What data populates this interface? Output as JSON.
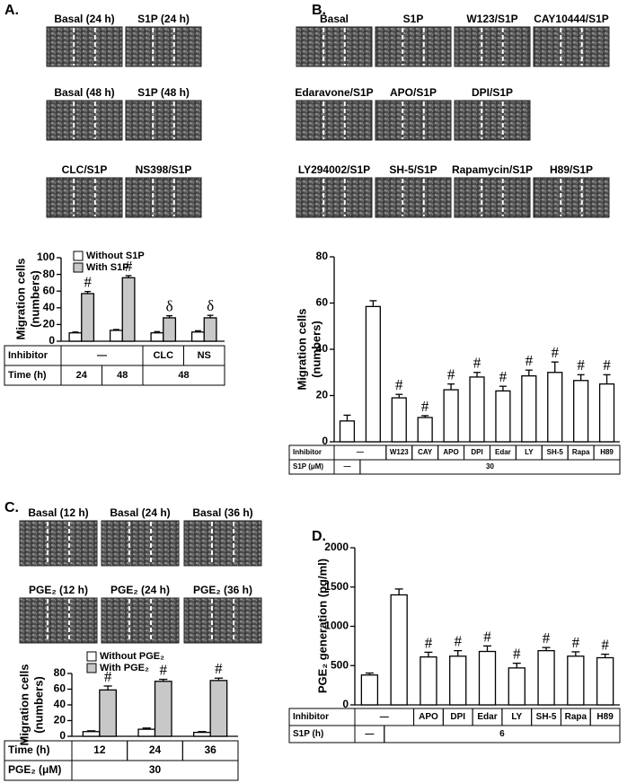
{
  "chart_data": [
    {
      "type": "bar",
      "panel": "A.",
      "images": [
        "Basal (24 h)",
        "S1P (24 h)",
        "Basal (48 h)",
        "S1P (48 h)",
        "CLC/S1P",
        "NS398/S1P"
      ],
      "y_label": [
        "Migration cells",
        "(numbers)"
      ],
      "ylim": [
        0,
        100
      ],
      "yticks": [
        0,
        20,
        40,
        60,
        80,
        100
      ],
      "series": [
        {
          "name": "Without S1P",
          "color": "#ffffff",
          "values": [
            10,
            13,
            10,
            11
          ],
          "errors": [
            1,
            1,
            1.5,
            1.5
          ]
        },
        {
          "name": "With S1P",
          "color": "#c8c8c8",
          "values": [
            57,
            76,
            28,
            28
          ],
          "errors": [
            2.5,
            2.5,
            2.5,
            3
          ],
          "annotations": [
            "#",
            "#",
            "δ",
            "δ"
          ]
        }
      ],
      "table": [
        [
          "Inhibitor",
          "—",
          "CLC",
          "NS"
        ],
        [
          "Time (h)",
          "24",
          "48",
          "48"
        ]
      ]
    },
    {
      "type": "bar",
      "panel": "B.",
      "images": [
        "Basal",
        "S1P",
        "W123/S1P",
        "CAY10444/S1P",
        "Edaravone/S1P",
        "APO/S1P",
        "DPI/S1P",
        "LY294002/S1P",
        "SH-5/S1P",
        "Rapamycin/S1P",
        "H89/S1P"
      ],
      "y_label": [
        "Migration cells",
        "(numbers)"
      ],
      "ylim": [
        0,
        80
      ],
      "yticks": [
        0,
        20,
        40,
        60,
        80
      ],
      "color": "#ffffff",
      "values": [
        9,
        58.5,
        19,
        10.5,
        22.5,
        28,
        22,
        28.5,
        30,
        26.5,
        25
      ],
      "errors": [
        2.5,
        2.5,
        1.5,
        0.8,
        2.5,
        2,
        2,
        2.5,
        4.5,
        2.5,
        4
      ],
      "annotations": [
        null,
        null,
        "#",
        "#",
        "#",
        "#",
        "#",
        "#",
        "#",
        "#",
        "#"
      ],
      "table": [
        [
          "Inhibitor",
          "—",
          "W123",
          "CAY",
          "APO",
          "DPI",
          "Edar",
          "LY",
          "SH-5",
          "Rapa",
          "H89"
        ],
        [
          "S1P (μM)",
          "—",
          "30"
        ]
      ]
    },
    {
      "type": "bar",
      "panel": "C.",
      "images": [
        "Basal (12 h)",
        "Basal (24 h)",
        "Basal (36 h)",
        "PGE₂ (12 h)",
        "PGE₂ (24 h)",
        "PGE₂ (36 h)"
      ],
      "y_label": [
        "Migration cells",
        "(numbers)"
      ],
      "ylim": [
        0,
        80
      ],
      "yticks": [
        0,
        20,
        40,
        60,
        80
      ],
      "series": [
        {
          "name": "Without PGE₂",
          "color": "#ffffff",
          "values": [
            6,
            9,
            5
          ],
          "errors": [
            1,
            1.5,
            1
          ]
        },
        {
          "name": "With PGE₂",
          "color": "#c8c8c8",
          "values": [
            59,
            70,
            71
          ],
          "errors": [
            5,
            2.5,
            3
          ],
          "annotations": [
            "#",
            "#",
            "#"
          ]
        }
      ],
      "table": [
        [
          "Time (h)",
          "12",
          "24",
          "36"
        ],
        [
          "PGE₂ (μM)",
          "30"
        ]
      ]
    },
    {
      "type": "bar",
      "panel": "D.",
      "y_label": [
        "PGE₂ generation (pg/ml)"
      ],
      "ylim": [
        0,
        2000
      ],
      "yticks": [
        0,
        500,
        1000,
        1500,
        2000
      ],
      "color": "#ffffff",
      "values": [
        380,
        1400,
        610,
        620,
        680,
        470,
        690,
        620,
        600
      ],
      "errors": [
        25,
        75,
        60,
        70,
        70,
        60,
        40,
        55,
        45
      ],
      "annotations": [
        null,
        null,
        "#",
        "#",
        "#",
        "#",
        "#",
        "#",
        "#"
      ],
      "table": [
        [
          "Inhibitor",
          "—",
          "APO",
          "DPI",
          "Edar",
          "LY",
          "SH-5",
          "Rapa",
          "H89"
        ],
        [
          "S1P (h)",
          "—",
          "6"
        ]
      ]
    }
  ]
}
